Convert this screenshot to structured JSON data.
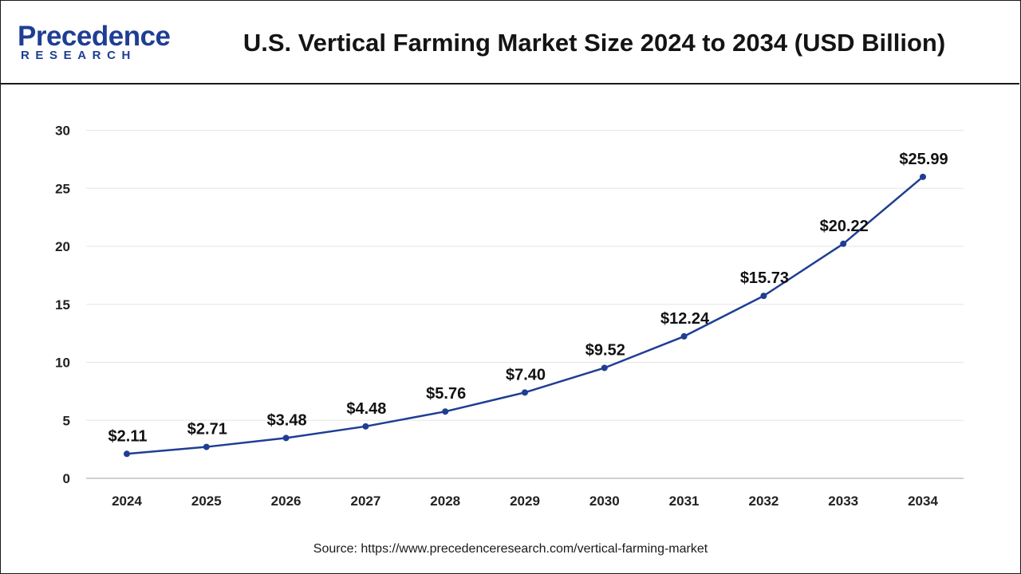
{
  "header": {
    "logo_main": "Precedence",
    "logo_sub": "RESEARCH",
    "title": "U.S. Vertical Farming Market Size 2024 to 2034 (USD Billion)"
  },
  "footer": {
    "source": "Source: https://www.precedenceresearch.com/vertical-farming-market"
  },
  "colors": {
    "line": "#1f3e93",
    "brand": "#1f3e93",
    "grid": "#e6e6e6"
  },
  "chart_data": {
    "type": "line",
    "title": "U.S. Vertical Farming Market Size 2024 to 2034 (USD Billion)",
    "categories": [
      "2024",
      "2025",
      "2026",
      "2027",
      "2028",
      "2029",
      "2030",
      "2031",
      "2032",
      "2033",
      "2034"
    ],
    "values": [
      2.11,
      2.71,
      3.48,
      4.48,
      5.76,
      7.4,
      9.52,
      12.24,
      15.73,
      20.22,
      25.99
    ],
    "data_labels": [
      "$2.11",
      "$2.71",
      "$3.48",
      "$4.48",
      "$5.76",
      "$7.40",
      "$9.52",
      "$12.24",
      "$15.73",
      "$20.22",
      "$25.99"
    ],
    "ylim": [
      0,
      30
    ],
    "yticks": [
      0,
      5,
      10,
      15,
      20,
      25,
      30
    ],
    "grid": true,
    "legend": "none",
    "xlabel": "",
    "ylabel": ""
  }
}
